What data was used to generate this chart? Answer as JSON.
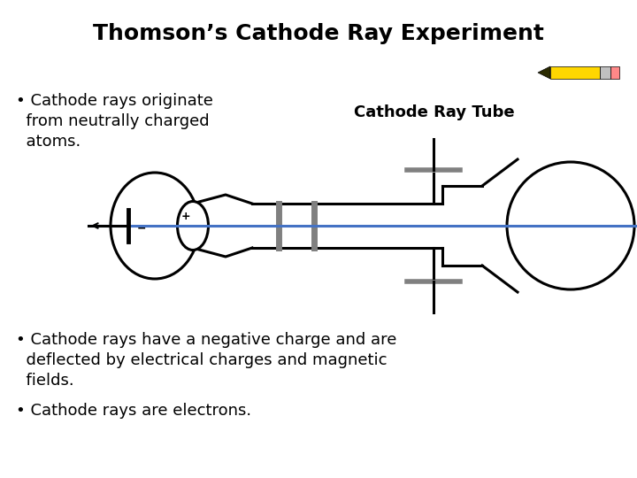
{
  "title": "Thomson’s Cathode Ray Experiment",
  "bullet1_line1": "• Cathode rays originate",
  "bullet1_line2": "  from neutrally charged",
  "bullet1_line3": "  atoms.",
  "label_tube": "Cathode Ray Tube",
  "bullet2_line1": "• Cathode rays have a negative charge and are",
  "bullet2_line2": "  deflected by electrical charges and magnetic",
  "bullet2_line3": "  fields.",
  "bullet3": "• Cathode rays are electrons.",
  "bg_color": "#ffffff",
  "text_color": "#000000",
  "title_fontsize": 18,
  "body_fontsize": 13,
  "label_fontsize": 12,
  "tube_color": "#000000",
  "ray_color": "#4472C4",
  "plate_color": "#808080",
  "pencil_body": "#FFD700",
  "pencil_eraser": "#FF8888",
  "pencil_gray": "#C0C0C0"
}
